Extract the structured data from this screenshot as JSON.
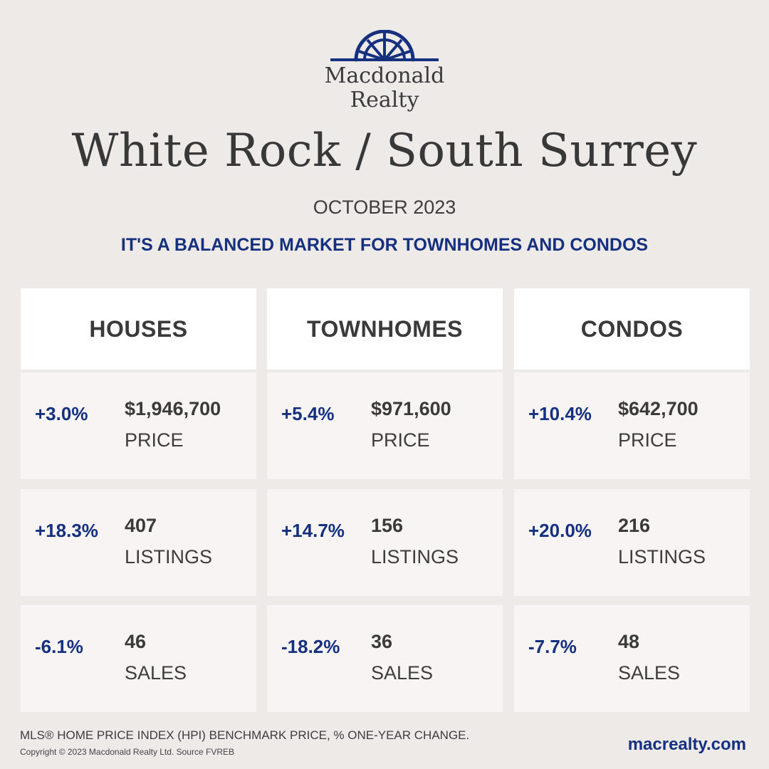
{
  "brand": {
    "logo_icon": "sunburst-arch-logo",
    "name_line1": "Macdonald",
    "name_line2": "Realty",
    "accent_color": "#15307e"
  },
  "title": "White Rock / South Surrey",
  "month": "OCTOBER 2023",
  "headline": "IT'S A BALANCED MARKET FOR TOWNHOMES AND CONDOS",
  "columns": [
    {
      "header": "HOUSES",
      "rows": [
        {
          "change": "+3.0%",
          "value": "$1,946,700",
          "metric": "PRICE"
        },
        {
          "change": "+18.3%",
          "value": "407",
          "metric": "LISTINGS"
        },
        {
          "change": "-6.1%",
          "value": "46",
          "metric": "SALES"
        }
      ]
    },
    {
      "header": "TOWNHOMES",
      "rows": [
        {
          "change": "+5.4%",
          "value": "$971,600",
          "metric": "PRICE"
        },
        {
          "change": "+14.7%",
          "value": "156",
          "metric": "LISTINGS"
        },
        {
          "change": "-18.2%",
          "value": "36",
          "metric": "SALES"
        }
      ]
    },
    {
      "header": "CONDOS",
      "rows": [
        {
          "change": "+10.4%",
          "value": "$642,700",
          "metric": "PRICE"
        },
        {
          "change": "+20.0%",
          "value": "216",
          "metric": "LISTINGS"
        },
        {
          "change": "-7.7%",
          "value": "48",
          "metric": "SALES"
        }
      ]
    }
  ],
  "footer": {
    "note": "MLS® HOME PRICE INDEX (HPI) BENCHMARK PRICE, % ONE-YEAR CHANGE.",
    "copyright": "Copyright © 2023 Macdonald Realty Ltd. Source FVREB",
    "website": "macrealty.com"
  }
}
